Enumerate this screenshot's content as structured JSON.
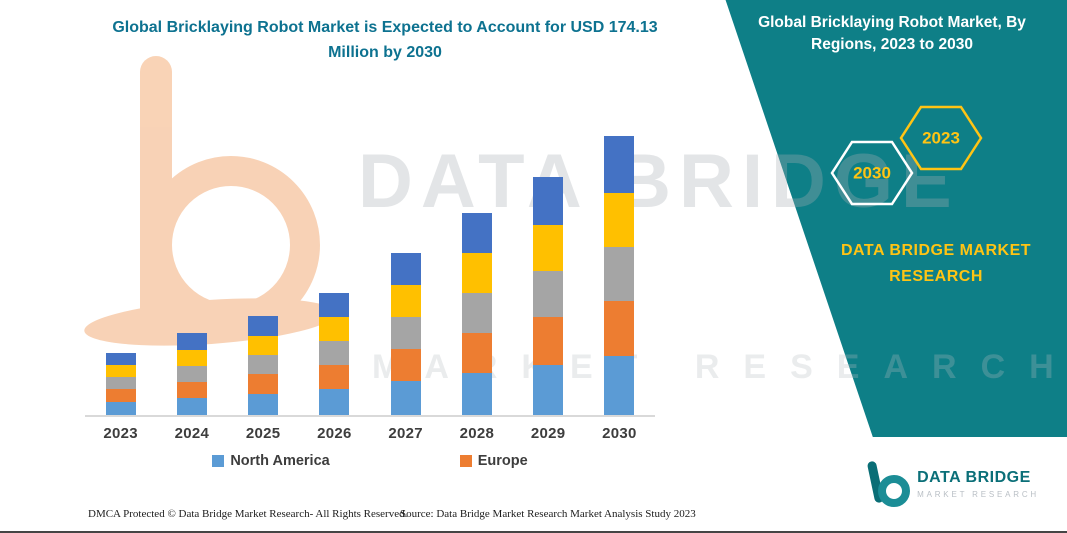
{
  "page": {
    "title": "Global Bricklaying Robot Market is Expected to Account for USD 174.13 Million by 2030"
  },
  "banner": {
    "title": "Global Bricklaying Robot Market, By Regions, 2023 to 2030",
    "hex_back_label": "2030",
    "hex_front_label": "2023",
    "brand_line": "DATA BRIDGE MARKET RESEARCH"
  },
  "watermark": {
    "line1": "DATA BRIDGE",
    "line2": "MARKET RESEARCH"
  },
  "colors": {
    "banner_teal": "#0e7f87",
    "brand_yellow": "#ffc414",
    "title_teal": "#0d7290",
    "axis_label": "#3d3d3d",
    "decorative_orange": "#f7c8a4"
  },
  "chart_data": {
    "type": "stacked-bar",
    "title": "Global Bricklaying Robot Market is Expected to Account for USD 174.13 Million by 2030",
    "value_unit": "USD Million",
    "categories": [
      "2023",
      "2024",
      "2025",
      "2026",
      "2027",
      "2028",
      "2029",
      "2030"
    ],
    "series": [
      {
        "name": "North America",
        "color": "#5B9BD5",
        "in_legend": true,
        "values": [
          8.0,
          10.5,
          13.0,
          16.0,
          21.0,
          26.0,
          31.0,
          37.0
        ]
      },
      {
        "name": "Europe",
        "color": "#ED7D31",
        "in_legend": true,
        "values": [
          8.0,
          10.0,
          12.5,
          15.0,
          20.0,
          25.0,
          30.0,
          34.0
        ]
      },
      {
        "name": "Unlabeled segment (gray)",
        "color": "#A5A5A5",
        "in_legend": false,
        "values": [
          7.5,
          10.0,
          12.0,
          15.0,
          20.0,
          25.0,
          29.0,
          34.0
        ]
      },
      {
        "name": "Unlabeled segment (yellow)",
        "color": "#FFC000",
        "in_legend": false,
        "values": [
          7.5,
          10.0,
          12.0,
          15.0,
          20.0,
          25.0,
          29.0,
          34.0
        ]
      },
      {
        "name": "Unlabeled segment (dark blue)",
        "color": "#4472C4",
        "in_legend": false,
        "values": [
          7.5,
          10.5,
          12.5,
          15.0,
          20.0,
          25.0,
          30.0,
          35.13
        ]
      }
    ],
    "totals_estimated": [
      38.5,
      51.0,
      62.0,
      76.0,
      101.0,
      126.0,
      149.0,
      174.13
    ],
    "legend": [
      "North America",
      "Europe"
    ],
    "legend_position": "bottom",
    "grid": false,
    "y_axis_visible": false,
    "note": "Segment values estimated from bar heights; 2030 total anchored to USD 174.13 Million stated in title"
  },
  "footer": {
    "dmca": "DMCA Protected © Data Bridge Market Research-  All Rights Reserved.",
    "source": "Source: Data Bridge Market Research  Market Analysis Study 2023"
  },
  "brand_logo": {
    "name": "DATA BRIDGE",
    "subtitle": "MARKET RESEARCH"
  }
}
